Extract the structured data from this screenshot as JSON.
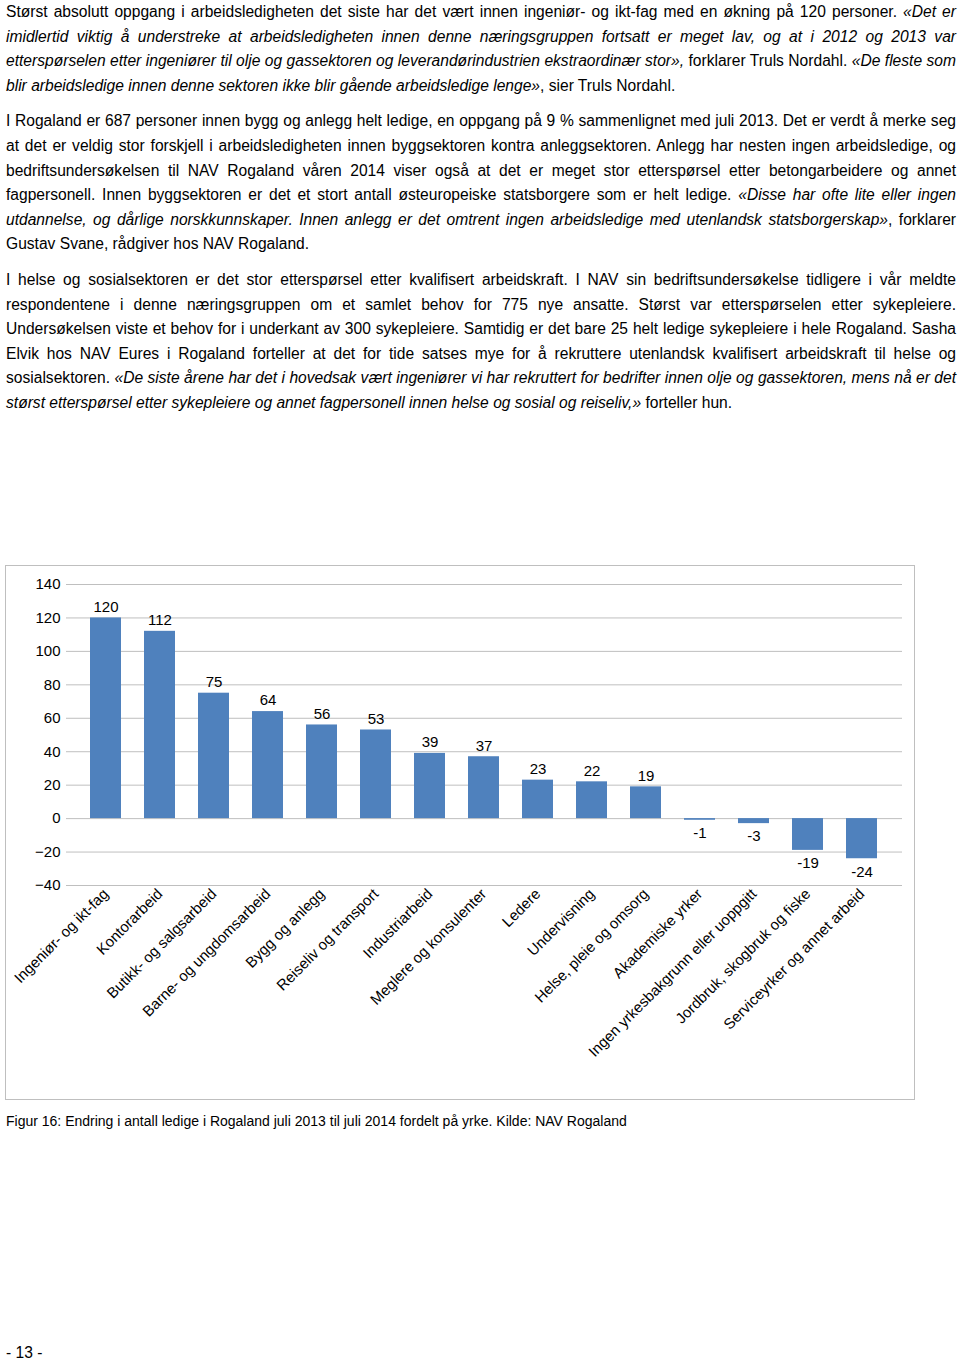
{
  "document": {
    "paragraphs": [
      [
        {
          "text": "Størst absolutt oppgang i arbeidsledigheten det siste har det vært innen ingeniør- og ikt-fag med en økning på 120 personer. ",
          "italic": false
        },
        {
          "text": "«Det er imidlertid viktig å understreke at arbeidsledigheten innen denne næringsgruppen fortsatt er meget lav, og at i 2012 og 2013 var etterspørselen etter ingeniører til olje og gassektoren og leverandørindustrien ekstraordinær stor»,",
          "italic": true
        },
        {
          "text": " forklarer Truls Nordahl. ",
          "italic": false
        },
        {
          "text": "«De fleste som blir arbeidsledige innen denne sektoren ikke blir gående arbeidsledige lenge»",
          "italic": true
        },
        {
          "text": ", sier Truls Nordahl.",
          "italic": false
        }
      ],
      [
        {
          "text": "I Rogaland er 687 personer innen bygg og anlegg helt ledige, en oppgang på 9 % sammenlignet med juli 2013. Det er verdt å merke seg at det er veldig stor forskjell i arbeidsledigheten innen byggsektoren kontra anleggsektoren. Anlegg har nesten ingen arbeidsledige, og bedriftsundersøkelsen til NAV Rogaland våren 2014 viser også at det er meget stor etterspørsel etter betongarbeidere og annet fagpersonell. Innen byggsektoren er det et stort antall østeuropeiske statsborgere som er helt ledige. ",
          "italic": false
        },
        {
          "text": "«Disse har ofte lite eller ingen utdannelse, og dårlige norskkunnskaper. Innen anlegg er det omtrent ingen arbeidsledige med utenlandsk statsborgerskap»",
          "italic": true
        },
        {
          "text": ", forklarer Gustav Svane, rådgiver hos NAV Rogaland.",
          "italic": false
        }
      ],
      [
        {
          "text": "I helse og sosialsektoren er det stor etterspørsel etter kvalifisert arbeidskraft. I NAV sin bedriftsundersøkelse tidligere i vår meldte respondentene i denne næringsgruppen om et samlet behov for 775 nye ansatte. Størst var etterspørselen etter sykepleiere. Undersøkelsen viste et behov for i underkant av 300 sykepleiere. Samtidig er det bare 25 helt ledige sykepleiere i hele Rogaland. Sasha Elvik hos NAV Eures i Rogaland forteller at det for tide satses mye for å rekruttere utenlandsk kvalifisert arbeidskraft til helse og sosialsektoren. ",
          "italic": false
        },
        {
          "text": "«De siste årene har det i hovedsak vært ingeniører vi har rekruttert for bedrifter innen olje og gassektoren, mens nå er det størst etterspørsel etter sykepleiere og annet fagpersonell innen helse og sosial og reiseliv,»",
          "italic": true
        },
        {
          "text": " forteller hun.",
          "italic": false
        }
      ]
    ],
    "caption": "Figur 16: Endring i antall ledige i Rogaland juli 2013 til juli 2014 fordelt på yrke. Kilde: NAV Rogaland",
    "page_number": "- 13 -"
  },
  "chart_data": {
    "type": "bar",
    "categories": [
      "Ingeniør- og ikt-fag",
      "Kontorarbeid",
      "Butikk- og salgsarbeid",
      "Barne- og ungdomsarbeid",
      "Bygg og anlegg",
      "Reiseliv og transport",
      "Industriarbeid",
      "Meglere og konsulenter",
      "Ledere",
      "Undervisning",
      "Helse, pleie og omsorg",
      "Akademiske yrker",
      "Ingen yrkesbakgrunn eller uoppgitt",
      "Jordbruk, skogbruk og fiske",
      "Serviceyrker og annet arbeid"
    ],
    "values": [
      120,
      112,
      75,
      64,
      56,
      53,
      39,
      37,
      23,
      22,
      19,
      -1,
      -3,
      -19,
      -24
    ],
    "color": "#4f81bd",
    "ylim": [
      -40,
      140
    ],
    "yticks": [
      -40,
      -20,
      0,
      20,
      40,
      60,
      80,
      100,
      120,
      140
    ],
    "grid": true,
    "data_labels": true
  }
}
